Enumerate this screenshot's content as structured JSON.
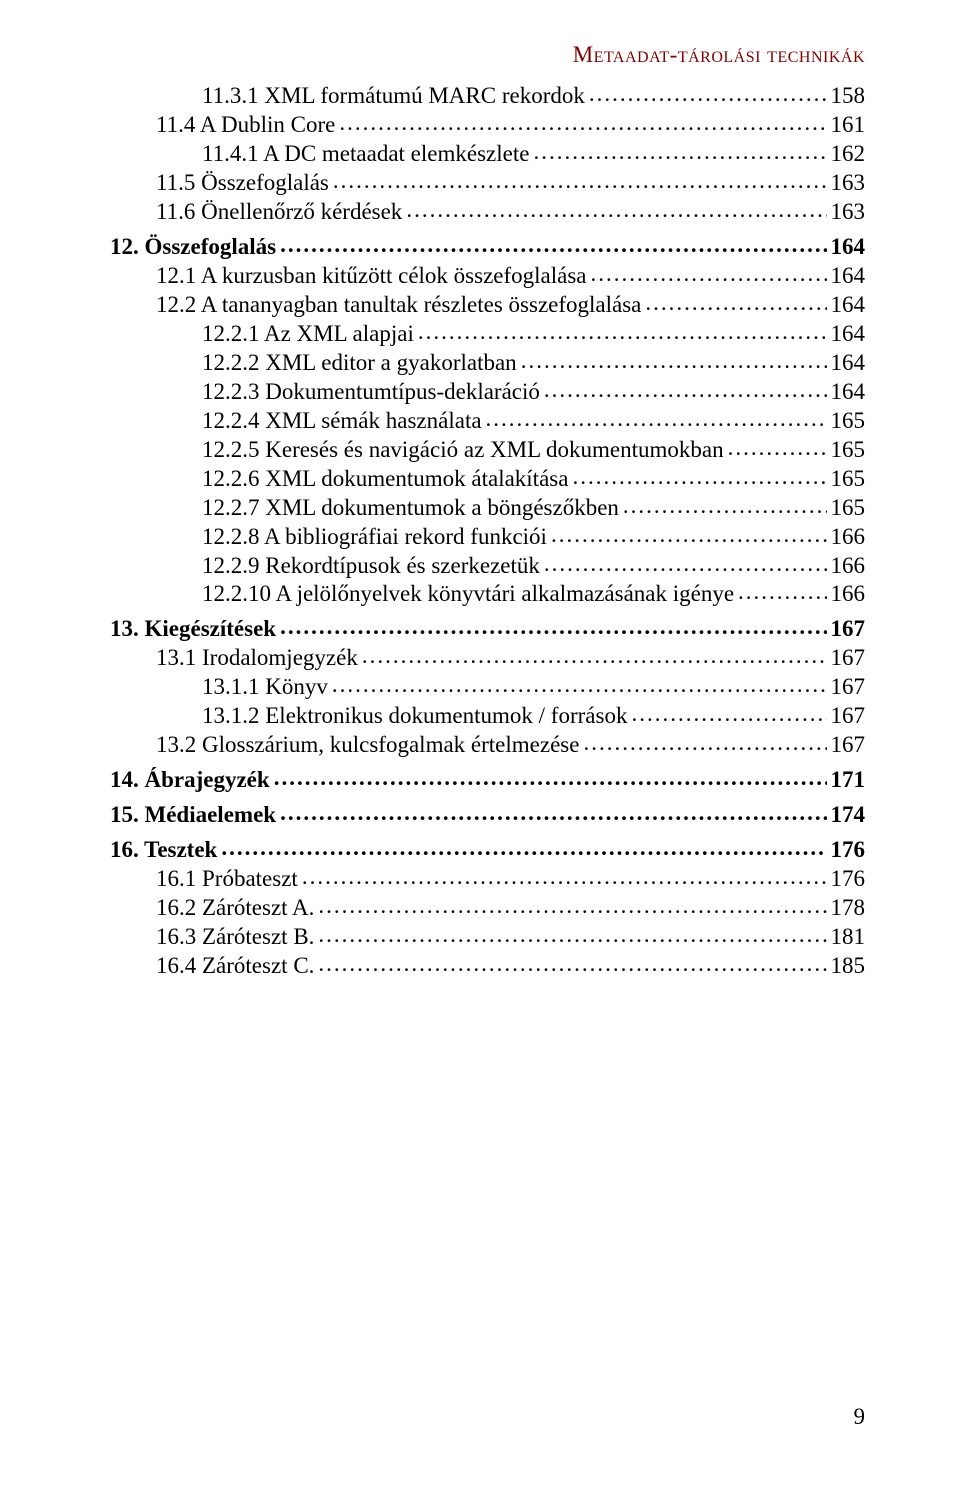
{
  "header": "Metaadat-tárolási technikák",
  "page_number": "9",
  "toc": [
    {
      "indent": 2,
      "bold": false,
      "label": "11.3.1   XML formátumú MARC rekordok",
      "page": "158"
    },
    {
      "indent": 1,
      "bold": false,
      "label": "11.4   A Dublin Core",
      "page": "161"
    },
    {
      "indent": 2,
      "bold": false,
      "label": "11.4.1   A DC metaadat elemkészlete",
      "page": "162"
    },
    {
      "indent": 1,
      "bold": false,
      "label": "11.5   Összefoglalás",
      "page": "163"
    },
    {
      "indent": 1,
      "bold": false,
      "label": "11.6   Önellenőrző kérdések",
      "page": "163"
    },
    {
      "indent": 0,
      "bold": true,
      "label": "12. Összefoglalás",
      "page": "164",
      "gap_before": true
    },
    {
      "indent": 1,
      "bold": false,
      "label": "12.1   A kurzusban kitűzött célok összefoglalása",
      "page": "164"
    },
    {
      "indent": 1,
      "bold": false,
      "label": "12.2   A tananyagban tanultak részletes összefoglalása",
      "page": "164"
    },
    {
      "indent": 2,
      "bold": false,
      "label": "12.2.1   Az XML alapjai",
      "page": "164"
    },
    {
      "indent": 2,
      "bold": false,
      "label": "12.2.2   XML editor a gyakorlatban",
      "page": "164"
    },
    {
      "indent": 2,
      "bold": false,
      "label": "12.2.3   Dokumentumtípus-deklaráció",
      "page": "164"
    },
    {
      "indent": 2,
      "bold": false,
      "label": "12.2.4   XML sémák használata",
      "page": "165"
    },
    {
      "indent": 2,
      "bold": false,
      "label": "12.2.5   Keresés és navigáció az XML dokumentumokban",
      "page": "165"
    },
    {
      "indent": 2,
      "bold": false,
      "label": "12.2.6   XML dokumentumok átalakítása",
      "page": "165"
    },
    {
      "indent": 2,
      "bold": false,
      "label": "12.2.7   XML dokumentumok a böngészőkben",
      "page": "165"
    },
    {
      "indent": 2,
      "bold": false,
      "label": "12.2.8   A bibliográfiai rekord funkciói",
      "page": "166"
    },
    {
      "indent": 2,
      "bold": false,
      "label": "12.2.9   Rekordtípusok és szerkezetük",
      "page": "166"
    },
    {
      "indent": 2,
      "bold": false,
      "label": "12.2.10  A jelölőnyelvek könyvtári alkalmazásának igénye",
      "page": "166"
    },
    {
      "indent": 0,
      "bold": true,
      "label": "13. Kiegészítések",
      "page": "167",
      "gap_before": true
    },
    {
      "indent": 1,
      "bold": false,
      "label": "13.1   Irodalomjegyzék",
      "page": "167"
    },
    {
      "indent": 2,
      "bold": false,
      "label": "13.1.1   Könyv",
      "page": "167"
    },
    {
      "indent": 2,
      "bold": false,
      "label": "13.1.2   Elektronikus dokumentumok / források",
      "page": "167"
    },
    {
      "indent": 1,
      "bold": false,
      "label": "13.2   Glosszárium, kulcsfogalmak értelmezése",
      "page": "167"
    },
    {
      "indent": 0,
      "bold": true,
      "label": "14. Ábrajegyzék",
      "page": "171",
      "gap_before": true
    },
    {
      "indent": 0,
      "bold": true,
      "label": "15. Médiaelemek",
      "page": "174",
      "gap_before": true
    },
    {
      "indent": 0,
      "bold": true,
      "label": "16. Tesztek",
      "page": "176",
      "gap_before": true
    },
    {
      "indent": 1,
      "bold": false,
      "label": "16.1   Próbateszt",
      "page": "176"
    },
    {
      "indent": 1,
      "bold": false,
      "label": "16.2   Záróteszt A.",
      "page": "178"
    },
    {
      "indent": 1,
      "bold": false,
      "label": "16.3   Záróteszt B.",
      "page": "181"
    },
    {
      "indent": 1,
      "bold": false,
      "label": "16.4   Záróteszt C.",
      "page": "185"
    }
  ]
}
